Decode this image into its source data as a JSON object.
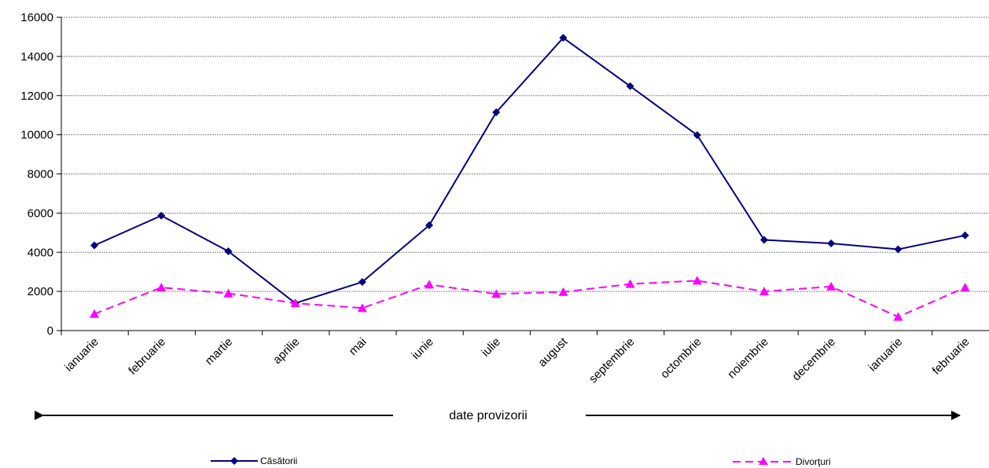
{
  "chart_data": {
    "type": "line",
    "categories": [
      "ianuarie",
      "februarie",
      "martie",
      "aprilie",
      "mai",
      "iunie",
      "iulie",
      "august",
      "septembrie",
      "octombrie",
      "noiembrie",
      "decembrie",
      "ianuarie",
      "februarie"
    ],
    "series": [
      {
        "name": "Căsătorii",
        "color": "#000080",
        "line_style": "solid",
        "marker": "diamond",
        "values": [
          4350,
          5870,
          4050,
          1400,
          2480,
          5380,
          11150,
          14950,
          12480,
          9980,
          4630,
          4450,
          4150,
          4860
        ]
      },
      {
        "name": "Divorţuri",
        "color": "#ff00ff",
        "line_style": "dashed",
        "marker": "triangle",
        "values": [
          850,
          2200,
          1900,
          1400,
          1150,
          2350,
          1870,
          1970,
          2380,
          2550,
          2000,
          2250,
          700,
          2200
        ]
      }
    ],
    "ylim": [
      0,
      16000
    ],
    "yticks": [
      "0",
      "2000",
      "4000",
      "6000",
      "8000",
      "10000",
      "12000",
      "14000",
      "16000"
    ],
    "grid": true,
    "legend_position": "bottom",
    "annotation": "date provizorii"
  }
}
